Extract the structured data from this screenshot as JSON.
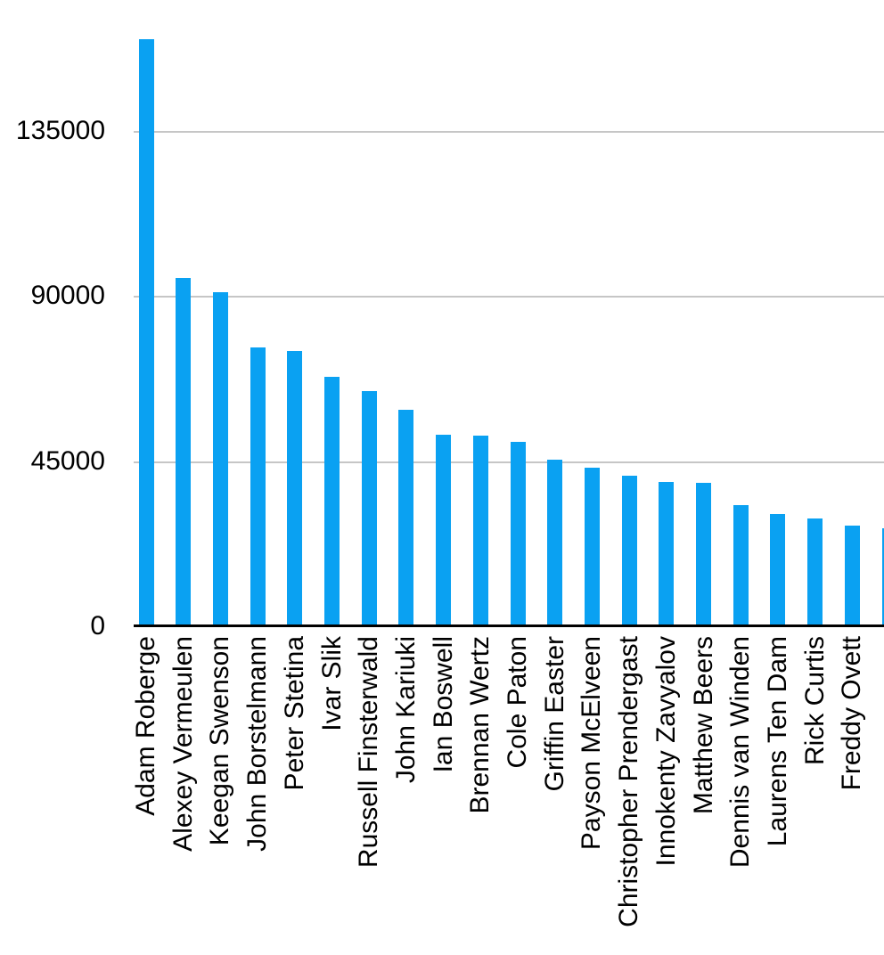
{
  "chart_data": {
    "type": "bar",
    "title": "",
    "xlabel": "",
    "ylabel": "",
    "categories": [
      "Adam Roberge",
      "Alexey Vermeulen",
      "Keegan Swenson",
      "John Borstelmann",
      "Peter Stetina",
      "Ivar Slik",
      "Russell Finsterwald",
      "John Kariuki",
      "Ian Boswell",
      "Brennan Wertz",
      "Cole Paton",
      "Griffin Easter",
      "Payson McElveen",
      "Christopher Prendergast",
      "Innokenty Zavyalov",
      "Matthew Beers",
      "Dennis van Winden",
      "Laurens Ten Dam",
      "Rick Curtis",
      "Freddy Ovett",
      ""
    ],
    "values": [
      160000,
      95000,
      91000,
      76000,
      75000,
      68000,
      64000,
      59000,
      52300,
      52000,
      50200,
      45400,
      43200,
      41000,
      39400,
      39200,
      33000,
      30600,
      29400,
      27400,
      26800
    ],
    "ylim": [
      0,
      170000
    ],
    "yticks": [
      0,
      45000,
      90000,
      135000
    ],
    "ytick_labels": [
      "0",
      "45000",
      "90000",
      "135000"
    ],
    "grid": true,
    "legend": false,
    "colors": {
      "bar": "#0aa1f2",
      "gridline": "#c6c6c6",
      "axis_line": "#000000",
      "text": "#000000",
      "background": "#ffffff"
    }
  }
}
